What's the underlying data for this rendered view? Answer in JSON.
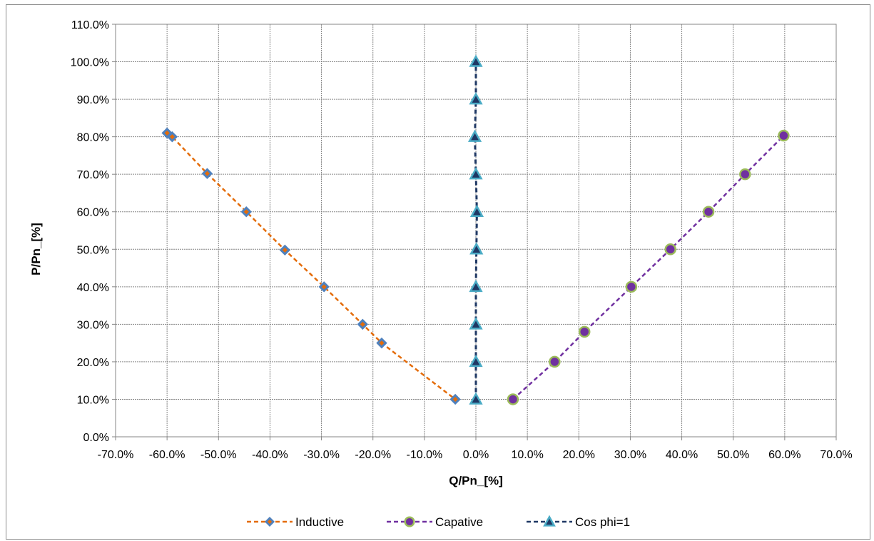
{
  "chart_data": {
    "type": "scatter",
    "xlabel": "Q/Pn_[%]",
    "ylabel": "P/Pn_[%]",
    "xlim": [
      -70,
      70
    ],
    "ylim": [
      0,
      110
    ],
    "x_ticks": [
      -70,
      -60,
      -50,
      -40,
      -30,
      -20,
      -10,
      0,
      10,
      20,
      30,
      40,
      50,
      60,
      70
    ],
    "y_ticks": [
      0,
      10,
      20,
      30,
      40,
      50,
      60,
      70,
      80,
      90,
      100,
      110
    ],
    "x_tick_labels": [
      "-70.0%",
      "-60.0%",
      "-50.0%",
      "-40.0%",
      "-30.0%",
      "-20.0%",
      "-10.0%",
      "0.0%",
      "10.0%",
      "20.0%",
      "30.0%",
      "40.0%",
      "50.0%",
      "60.0%",
      "70.0%"
    ],
    "y_tick_labels": [
      "0.0%",
      "10.0%",
      "20.0%",
      "30.0%",
      "40.0%",
      "50.0%",
      "60.0%",
      "70.0%",
      "80.0%",
      "90.0%",
      "100.0%",
      "110.0%"
    ],
    "grid": true,
    "legend_position": "bottom",
    "series": [
      {
        "name": "Inductive",
        "color": "#e46c0a",
        "marker": "diamond",
        "marker_fill": "#4f81bd",
        "marker_fill_secondary": "#e46c0a",
        "line_style": "dashed",
        "points": [
          {
            "x": -60.0,
            "y": 81.0
          },
          {
            "x": -59.0,
            "y": 80.0
          },
          {
            "x": -52.2,
            "y": 70.2
          },
          {
            "x": -44.6,
            "y": 60.0
          },
          {
            "x": -37.1,
            "y": 49.8
          },
          {
            "x": -29.5,
            "y": 40.0
          },
          {
            "x": -22.0,
            "y": 30.0
          },
          {
            "x": -18.3,
            "y": 25.0
          },
          {
            "x": -4.0,
            "y": 10.0
          }
        ]
      },
      {
        "name": "Capative",
        "color": "#7030a0",
        "marker": "circle",
        "marker_fill": "#7030a0",
        "marker_stroke": "#9bbb59",
        "line_style": "dashed",
        "points": [
          {
            "x": 7.2,
            "y": 10.0
          },
          {
            "x": 15.3,
            "y": 20.0
          },
          {
            "x": 21.1,
            "y": 28.0
          },
          {
            "x": 30.2,
            "y": 40.0
          },
          {
            "x": 37.8,
            "y": 50.0
          },
          {
            "x": 45.2,
            "y": 60.0
          },
          {
            "x": 52.3,
            "y": 70.0
          },
          {
            "x": 59.8,
            "y": 80.3
          }
        ]
      },
      {
        "name": "Cos phi=1",
        "color": "#1f3864",
        "marker": "triangle",
        "marker_fill": "#1f3864",
        "marker_stroke": "#4bacc6",
        "line_style": "dashed",
        "points": [
          {
            "x": 0.0,
            "y": 10.0
          },
          {
            "x": 0.0,
            "y": 20.0
          },
          {
            "x": 0.0,
            "y": 30.0
          },
          {
            "x": 0.0,
            "y": 40.0
          },
          {
            "x": 0.1,
            "y": 50.0
          },
          {
            "x": 0.2,
            "y": 60.0
          },
          {
            "x": 0.0,
            "y": 70.0
          },
          {
            "x": -0.2,
            "y": 80.0
          },
          {
            "x": 0.0,
            "y": 90.0
          },
          {
            "x": 0.0,
            "y": 100.0
          }
        ]
      }
    ]
  }
}
